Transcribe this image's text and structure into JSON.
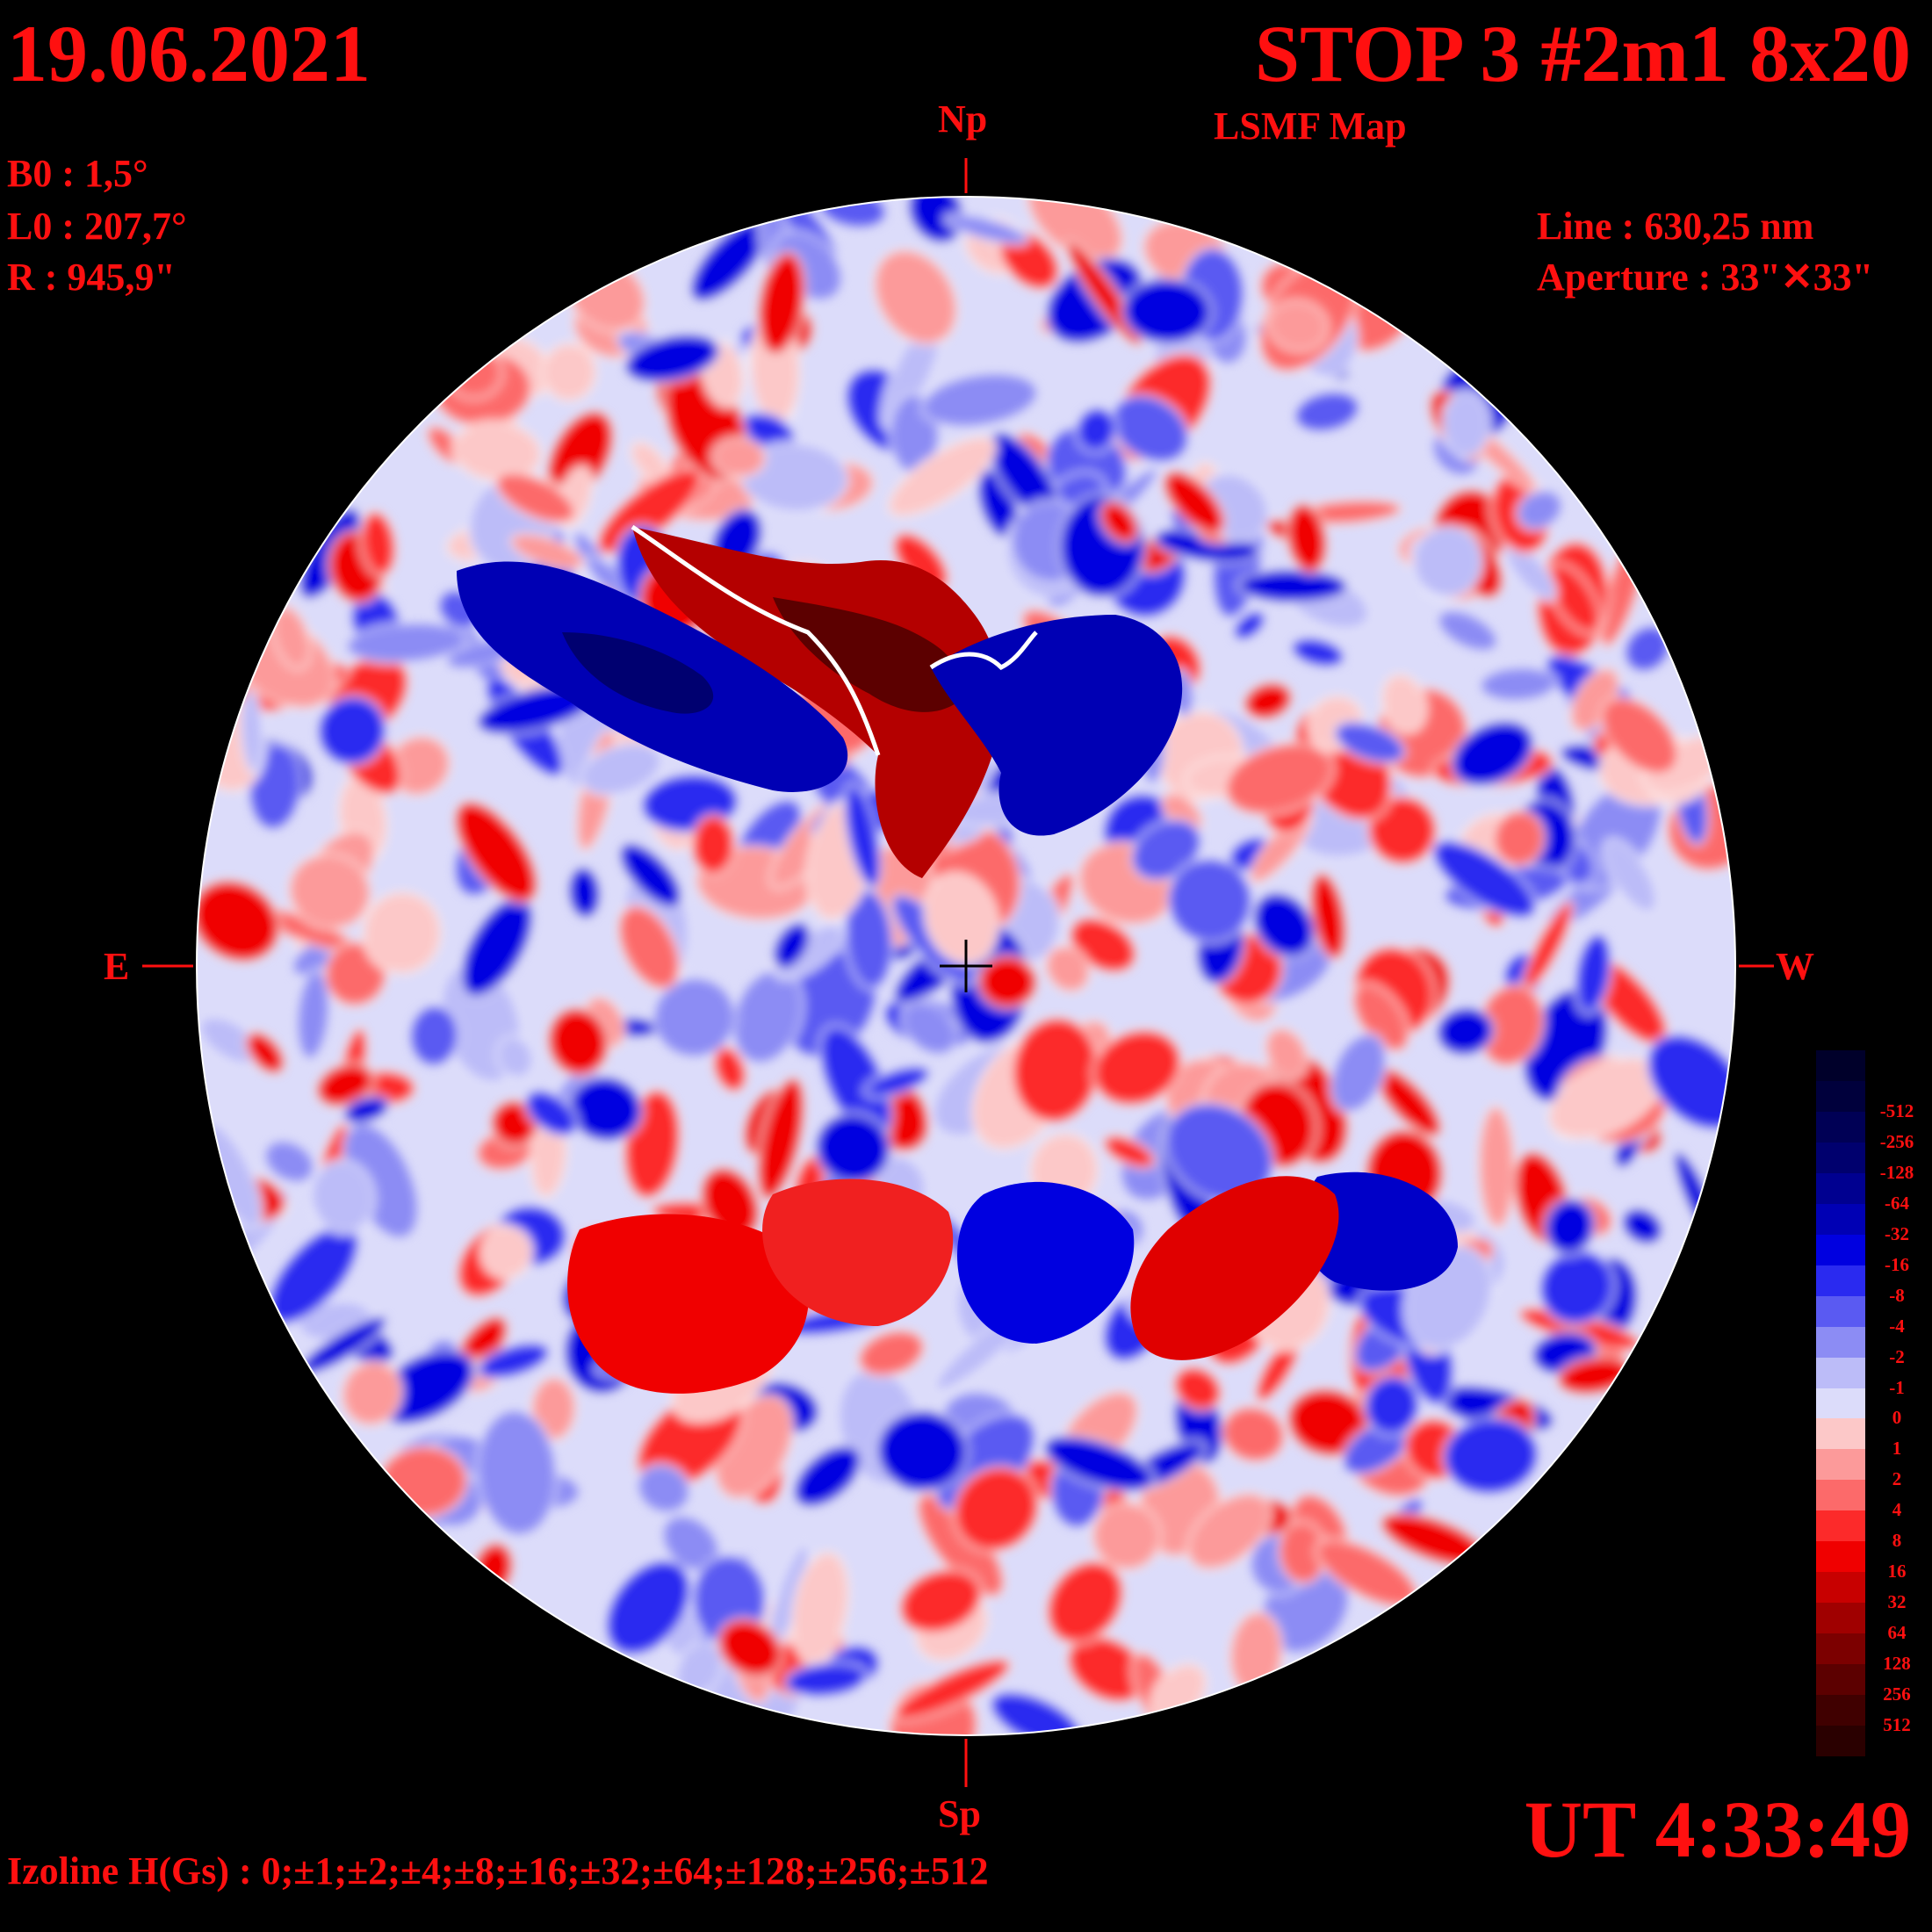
{
  "header": {
    "date": "19.06.2021",
    "title": "STOP 3 #2m1 8x20",
    "map_type": "LSMF  Map",
    "ut": "UT 4:33:49"
  },
  "params": {
    "b0": "B0 : 1,5°",
    "l0": "L0 : 207,7°",
    "r": "R  : 945,9\"",
    "line": "Line :  630,25 nm",
    "aperture": "Aperture : 33\"✕33\""
  },
  "orientation": {
    "north": "Np",
    "south": "Sp",
    "east": "E",
    "west": "W"
  },
  "footer": {
    "isolines": "Izoline H(Gs) : 0;±1;±2;±4;±8;±16;±32;±64;±128;±256;±512"
  },
  "color_scale": {
    "levels": [
      {
        "label": "",
        "color": "#00002a"
      },
      {
        "label": "-512",
        "color": "#00003c"
      },
      {
        "label": "-256",
        "color": "#000055"
      },
      {
        "label": "-128",
        "color": "#00006e"
      },
      {
        "label": "-64",
        "color": "#000090"
      },
      {
        "label": "-32",
        "color": "#0000b4"
      },
      {
        "label": "-16",
        "color": "#0000e0"
      },
      {
        "label": "-8",
        "color": "#2a2af0"
      },
      {
        "label": "-4",
        "color": "#5a5af2"
      },
      {
        "label": "-2",
        "color": "#8c8cf4"
      },
      {
        "label": "-1",
        "color": "#bcbcf8"
      },
      {
        "label": "0",
        "color": "#dcdcfa"
      },
      {
        "label": "1",
        "color": "#fcc8c8"
      },
      {
        "label": "2",
        "color": "#fc9a9a"
      },
      {
        "label": "4",
        "color": "#fc6a6a"
      },
      {
        "label": "8",
        "color": "#fc2a2a"
      },
      {
        "label": "16",
        "color": "#f00000"
      },
      {
        "label": "32",
        "color": "#c80000"
      },
      {
        "label": "64",
        "color": "#a00000"
      },
      {
        "label": "128",
        "color": "#7c0000"
      },
      {
        "label": "256",
        "color": "#5c0000"
      },
      {
        "label": "512",
        "color": "#400000"
      },
      {
        "label": "",
        "color": "#2a0000"
      }
    ]
  },
  "map_colors": {
    "label_color": "#ff1010",
    "isoline_color": "#ffffff"
  }
}
